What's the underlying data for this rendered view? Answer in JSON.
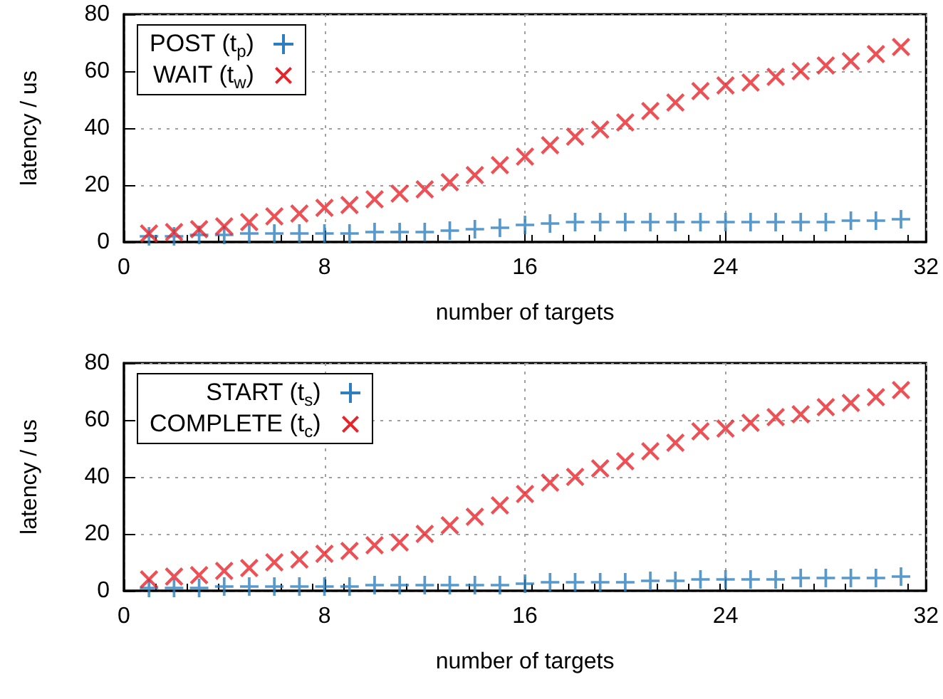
{
  "chart_data": [
    {
      "type": "scatter",
      "xlabel": "number of targets",
      "ylabel": "latency / us",
      "x": [
        1,
        2,
        3,
        4,
        5,
        6,
        7,
        8,
        9,
        10,
        11,
        12,
        13,
        14,
        15,
        16,
        17,
        18,
        19,
        20,
        21,
        22,
        23,
        24,
        25,
        26,
        27,
        28,
        29,
        30,
        31
      ],
      "xlim": [
        0,
        32
      ],
      "xticks": [
        0,
        8,
        16,
        24,
        32
      ],
      "ylim": [
        0,
        80
      ],
      "yticks": [
        0,
        20,
        40,
        60,
        80
      ],
      "grid": true,
      "legend": "top left",
      "series": [
        {
          "name": "POST (t$_{p}$)",
          "color": "#2e7fbf",
          "marker": "plus",
          "values": [
            2,
            2,
            2.5,
            2.5,
            3,
            3,
            3,
            3,
            3,
            3.5,
            3.5,
            3.5,
            4,
            4.5,
            5,
            6,
            6.5,
            7,
            7,
            7,
            7,
            7,
            7,
            7,
            7,
            7,
            7,
            7,
            7.5,
            7.5,
            8
          ]
        },
        {
          "name": "WAIT (t$_{w}$)",
          "color": "#e8242b",
          "marker": "cross",
          "values": [
            3,
            3.5,
            4.5,
            5.5,
            7,
            9,
            10,
            12,
            13,
            15,
            17,
            18.5,
            21,
            23.5,
            27,
            30,
            34,
            37,
            39.5,
            42,
            46,
            49,
            53,
            55,
            56,
            58,
            60,
            62,
            63.5,
            66,
            68.5
          ]
        }
      ]
    },
    {
      "type": "scatter",
      "xlabel": "number of targets",
      "ylabel": "latency / us",
      "x": [
        1,
        2,
        3,
        4,
        5,
        6,
        7,
        8,
        9,
        10,
        11,
        12,
        13,
        14,
        15,
        16,
        17,
        18,
        19,
        20,
        21,
        22,
        23,
        24,
        25,
        26,
        27,
        28,
        29,
        30,
        31
      ],
      "xlim": [
        0,
        32
      ],
      "xticks": [
        0,
        8,
        16,
        24,
        32
      ],
      "ylim": [
        0,
        80
      ],
      "yticks": [
        0,
        20,
        40,
        60,
        80
      ],
      "grid": true,
      "legend": "top left",
      "series": [
        {
          "name": "START (t$_{s}$)",
          "color": "#2e7fbf",
          "marker": "plus",
          "values": [
            1,
            1,
            1,
            1.5,
            1.5,
            1.5,
            1.5,
            1.5,
            1.5,
            2,
            2,
            2,
            2,
            2,
            2,
            2.5,
            3,
            3,
            3,
            3,
            3.5,
            3.5,
            4,
            4,
            4,
            4,
            4.5,
            4.5,
            4.5,
            4.5,
            5
          ]
        },
        {
          "name": "COMPLETE (t$_{c}$)",
          "color": "#e8242b",
          "marker": "cross",
          "values": [
            4,
            5,
            5.5,
            7,
            8,
            10,
            11,
            13,
            14,
            16,
            17,
            20,
            23,
            26,
            30,
            34,
            38,
            40,
            43,
            45.5,
            49,
            52,
            56,
            57,
            59,
            61,
            62,
            64.5,
            66,
            68,
            70.5
          ]
        }
      ]
    }
  ]
}
